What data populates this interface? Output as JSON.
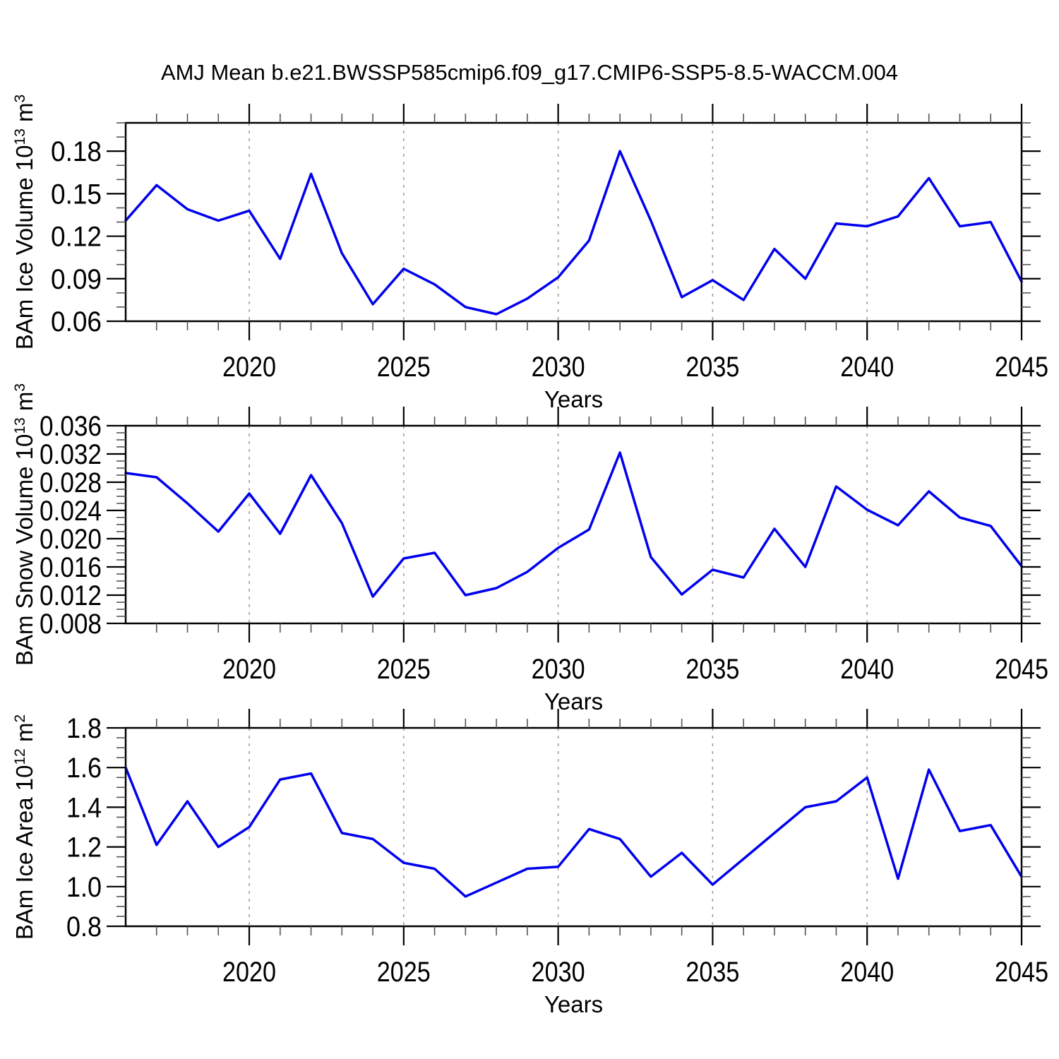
{
  "title": "AMJ Mean b.e21.BWSSP585cmip6.f09_g17.CMIP6-SSP5-8.5-WACCM.004",
  "colors": {
    "line": "#0000EE",
    "axis": "#000000",
    "gridline": "#999999",
    "background": "#FFFFFF"
  },
  "chart_data": [
    {
      "type": "line",
      "title": "",
      "xlabel": "Years",
      "ylabel": "BAm Ice Volume 10^13 m^3",
      "line_color": "#0000EE",
      "legend": "none",
      "grid": "vertical-dashed-at-major-x",
      "xlim": [
        2016,
        2045
      ],
      "ylim": [
        0.06,
        0.2
      ],
      "ytick_minor_step": 0.01,
      "ytick_values": [
        0.06,
        0.09,
        0.12,
        0.15,
        0.18
      ],
      "ytick_labels": [
        "0.06",
        "0.09",
        "0.12",
        "0.15",
        "0.18"
      ],
      "xtick_years": [
        2020,
        2025,
        2030,
        2035,
        2040,
        2045
      ],
      "xtick_labels": [
        "2020",
        "2025",
        "2030",
        "2035",
        "2040",
        "2045"
      ],
      "grid_years": [
        2020,
        2025,
        2030,
        2035,
        2040
      ],
      "x": [
        2016,
        2017,
        2018,
        2019,
        2020,
        2021,
        2022,
        2023,
        2024,
        2025,
        2026,
        2027,
        2028,
        2029,
        2030,
        2031,
        2032,
        2033,
        2034,
        2035,
        2036,
        2037,
        2038,
        2039,
        2040,
        2041,
        2042,
        2043,
        2044,
        2045
      ],
      "values": [
        0.131,
        0.156,
        0.139,
        0.131,
        0.138,
        0.104,
        0.164,
        0.108,
        0.072,
        0.097,
        0.086,
        0.07,
        0.065,
        0.076,
        0.091,
        0.117,
        0.18,
        0.131,
        0.077,
        0.089,
        0.075,
        0.111,
        0.09,
        0.129,
        0.127,
        0.134,
        0.161,
        0.127,
        0.13,
        0.088
      ]
    },
    {
      "type": "line",
      "title": "",
      "xlabel": "Years",
      "ylabel": "BAm Snow Volume 10^13 m^3",
      "line_color": "#0000EE",
      "legend": "none",
      "grid": "vertical-dashed-at-major-x",
      "xlim": [
        2016,
        2045
      ],
      "ylim": [
        0.008,
        0.036
      ],
      "ytick_minor_step": 0.001,
      "ytick_values": [
        0.008,
        0.012,
        0.016,
        0.02,
        0.024,
        0.028,
        0.032,
        0.036
      ],
      "ytick_labels": [
        "0.008",
        "0.012",
        "0.016",
        "0.020",
        "0.024",
        "0.028",
        "0.032",
        "0.036"
      ],
      "xtick_years": [
        2020,
        2025,
        2030,
        2035,
        2040,
        2045
      ],
      "xtick_labels": [
        "2020",
        "2025",
        "2030",
        "2035",
        "2040",
        "2045"
      ],
      "grid_years": [
        2020,
        2025,
        2030,
        2035,
        2040
      ],
      "x": [
        2016,
        2017,
        2018,
        2019,
        2020,
        2021,
        2022,
        2023,
        2024,
        2025,
        2026,
        2027,
        2028,
        2029,
        2030,
        2031,
        2032,
        2033,
        2034,
        2035,
        2036,
        2037,
        2038,
        2039,
        2040,
        2041,
        2042,
        2043,
        2044,
        2045
      ],
      "values": [
        0.0293,
        0.0287,
        0.025,
        0.021,
        0.0264,
        0.0207,
        0.029,
        0.0222,
        0.0118,
        0.0172,
        0.018,
        0.012,
        0.013,
        0.0153,
        0.0187,
        0.0213,
        0.0322,
        0.0174,
        0.0121,
        0.0156,
        0.0145,
        0.0214,
        0.016,
        0.0274,
        0.0241,
        0.0219,
        0.0267,
        0.023,
        0.0218,
        0.0161
      ]
    },
    {
      "type": "line",
      "title": "",
      "xlabel": "Years",
      "ylabel": "BAm Ice Area 10^12 m^2",
      "line_color": "#0000EE",
      "legend": "none",
      "grid": "vertical-dashed-at-major-x",
      "xlim": [
        2016,
        2045
      ],
      "ylim": [
        0.8,
        1.8
      ],
      "ytick_minor_step": 0.05,
      "ytick_values": [
        0.8,
        1.0,
        1.2,
        1.4,
        1.6,
        1.8
      ],
      "ytick_labels": [
        "0.8",
        "1.0",
        "1.2",
        "1.4",
        "1.6",
        "1.8"
      ],
      "xtick_years": [
        2020,
        2025,
        2030,
        2035,
        2040,
        2045
      ],
      "xtick_labels": [
        "2020",
        "2025",
        "2030",
        "2035",
        "2040",
        "2045"
      ],
      "grid_years": [
        2020,
        2025,
        2030,
        2035,
        2040
      ],
      "x": [
        2016,
        2017,
        2018,
        2019,
        2020,
        2021,
        2022,
        2023,
        2024,
        2025,
        2026,
        2027,
        2028,
        2029,
        2030,
        2031,
        2032,
        2033,
        2034,
        2035,
        2036,
        2037,
        2038,
        2039,
        2040,
        2041,
        2042,
        2043,
        2044,
        2045
      ],
      "values": [
        1.6,
        1.21,
        1.43,
        1.2,
        1.3,
        1.54,
        1.57,
        1.27,
        1.24,
        1.12,
        1.09,
        0.95,
        1.02,
        1.09,
        1.1,
        1.29,
        1.24,
        1.05,
        1.17,
        1.01,
        1.14,
        1.27,
        1.4,
        1.43,
        1.55,
        1.04,
        1.59,
        1.28,
        1.31,
        1.05
      ]
    }
  ]
}
